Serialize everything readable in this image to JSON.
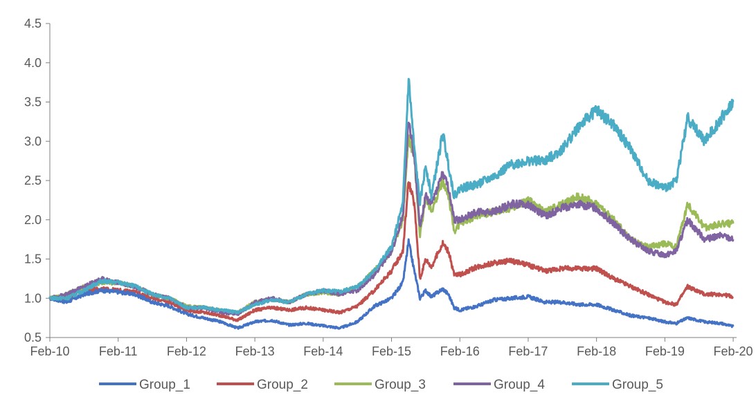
{
  "chart_data": {
    "type": "line",
    "title": "",
    "xlabel": "",
    "ylabel": "",
    "ylim": [
      0.5,
      4.5
    ],
    "y_ticks": [
      "0.5",
      "1.0",
      "1.5",
      "2.0",
      "2.5",
      "3.0",
      "3.5",
      "4.0",
      "4.5"
    ],
    "x_ticks": [
      "Feb-10",
      "Feb-11",
      "Feb-12",
      "Feb-13",
      "Feb-14",
      "Feb-15",
      "Feb-16",
      "Feb-17",
      "Feb-18",
      "Feb-19",
      "Feb-20"
    ],
    "grid": false,
    "legend_position": "bottom",
    "x": [
      "Feb-10",
      "May-10",
      "Aug-10",
      "Nov-10",
      "Feb-11",
      "May-11",
      "Aug-11",
      "Nov-11",
      "Feb-12",
      "May-12",
      "Aug-12",
      "Nov-12",
      "Feb-13",
      "May-13",
      "Aug-13",
      "Nov-13",
      "Feb-14",
      "May-14",
      "Aug-14",
      "Nov-14",
      "Feb-15",
      "Apr-15",
      "May-15",
      "Jun-15",
      "Jul-15",
      "Aug-15",
      "Sep-15",
      "Nov-15",
      "Dec-15",
      "Jan-16",
      "Feb-16",
      "May-16",
      "Aug-16",
      "Nov-16",
      "Feb-17",
      "May-17",
      "Aug-17",
      "Nov-17",
      "Feb-18",
      "May-18",
      "Aug-18",
      "Nov-18",
      "Feb-19",
      "Apr-19",
      "Jun-19",
      "Sep-19",
      "Dec-19",
      "Feb-20"
    ],
    "series": [
      {
        "name": "Group_1",
        "color": "#4472C4",
        "values": [
          1.0,
          0.95,
          1.05,
          1.1,
          1.08,
          1.05,
          0.95,
          0.9,
          0.8,
          0.75,
          0.7,
          0.62,
          0.7,
          0.72,
          0.66,
          0.68,
          0.65,
          0.62,
          0.7,
          0.9,
          1.0,
          1.2,
          1.72,
          1.35,
          1.0,
          1.1,
          1.02,
          1.12,
          1.05,
          0.88,
          0.85,
          0.9,
          0.98,
          1.0,
          1.02,
          0.95,
          0.95,
          0.92,
          0.92,
          0.85,
          0.78,
          0.75,
          0.7,
          0.68,
          0.75,
          0.7,
          0.68,
          0.64
        ]
      },
      {
        "name": "Group_2",
        "color": "#C0504D",
        "values": [
          1.0,
          1.0,
          1.1,
          1.12,
          1.1,
          1.08,
          1.0,
          0.95,
          0.85,
          0.82,
          0.78,
          0.72,
          0.85,
          0.88,
          0.85,
          0.88,
          0.85,
          0.82,
          0.9,
          1.1,
          1.35,
          1.6,
          2.5,
          2.2,
          1.25,
          1.5,
          1.4,
          1.7,
          1.6,
          1.3,
          1.3,
          1.4,
          1.45,
          1.48,
          1.42,
          1.35,
          1.38,
          1.38,
          1.38,
          1.25,
          1.15,
          1.05,
          0.95,
          0.92,
          1.15,
          1.05,
          1.05,
          1.02
        ]
      },
      {
        "name": "Group_3",
        "color": "#9BBB59",
        "values": [
          1.0,
          1.05,
          1.15,
          1.2,
          1.2,
          1.15,
          1.05,
          1.0,
          0.9,
          0.88,
          0.85,
          0.82,
          0.95,
          0.98,
          0.95,
          1.05,
          1.08,
          1.05,
          1.15,
          1.35,
          1.6,
          2.0,
          3.05,
          2.8,
          1.8,
          2.3,
          2.1,
          2.5,
          2.3,
          1.85,
          1.95,
          2.05,
          2.1,
          2.15,
          2.25,
          2.1,
          2.2,
          2.3,
          2.2,
          2.0,
          1.75,
          1.65,
          1.7,
          1.65,
          2.2,
          1.9,
          1.95,
          1.95
        ]
      },
      {
        "name": "Group_4",
        "color": "#8064A2",
        "values": [
          1.0,
          1.05,
          1.15,
          1.25,
          1.2,
          1.15,
          1.05,
          1.0,
          0.88,
          0.88,
          0.82,
          0.8,
          0.95,
          1.0,
          0.95,
          1.05,
          1.1,
          1.05,
          1.1,
          1.3,
          1.6,
          2.05,
          3.3,
          2.8,
          1.9,
          2.3,
          2.2,
          2.6,
          2.4,
          2.0,
          2.0,
          2.1,
          2.1,
          2.2,
          2.2,
          2.05,
          2.15,
          2.2,
          2.15,
          1.95,
          1.75,
          1.6,
          1.55,
          1.6,
          2.0,
          1.75,
          1.8,
          1.75
        ]
      },
      {
        "name": "Group_5",
        "color": "#4BACC6",
        "values": [
          1.0,
          1.0,
          1.1,
          1.22,
          1.2,
          1.15,
          1.05,
          1.0,
          0.88,
          0.88,
          0.85,
          0.82,
          0.92,
          0.98,
          0.95,
          1.05,
          1.1,
          1.08,
          1.15,
          1.35,
          1.65,
          2.2,
          3.8,
          2.9,
          2.2,
          2.7,
          2.3,
          3.1,
          2.7,
          2.3,
          2.4,
          2.45,
          2.55,
          2.7,
          2.75,
          2.75,
          2.9,
          3.2,
          3.4,
          3.2,
          2.9,
          2.5,
          2.4,
          2.5,
          3.3,
          3.0,
          3.3,
          3.5
        ]
      }
    ]
  }
}
